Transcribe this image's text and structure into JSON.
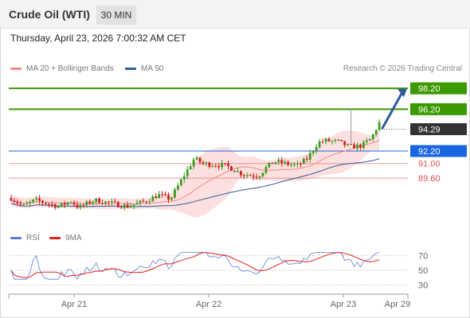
{
  "header": {
    "instrument": "Crude Oil (WTI)",
    "timeframe": "30 MIN",
    "datetime": "Thursday, April 23, 2026 7:00:32 AM CET"
  },
  "legend": {
    "ma20": {
      "label": "MA 20 + Bollinger Bands",
      "color": "#f28b82"
    },
    "ma50": {
      "label": "MA 50",
      "color": "#2f5b9a"
    },
    "credit": "Research © 2026 Trading Central"
  },
  "rsi_legend": {
    "rsi": {
      "label": "RSI",
      "color": "#5b7fd6"
    },
    "ma9": {
      "label": "9MA",
      "color": "#e02020"
    }
  },
  "chart_data": [
    {
      "type": "candlestick",
      "title": "Crude Oil (WTI)",
      "x_ticks": [
        "Apr 21",
        "Apr 22",
        "Apr 23",
        "Apr 29"
      ],
      "ylim": [
        85.5,
        99.2
      ],
      "current_price": {
        "label": "94.29",
        "value": 94.29,
        "color": "#333333"
      },
      "levels": [
        {
          "label": "98.20",
          "value": 98.2,
          "style": "tag",
          "color": "#3a9a00"
        },
        {
          "label": "96.20",
          "value": 96.2,
          "style": "tag",
          "color": "#3a9a00"
        },
        {
          "label": "92.20",
          "value": 92.2,
          "style": "tag",
          "color": "#1a66e0"
        },
        {
          "label": "91.00",
          "value": 91.0,
          "style": "text",
          "color": "#e05050"
        },
        {
          "label": "89.60",
          "value": 89.6,
          "style": "text",
          "color": "#e05050"
        }
      ],
      "projection": {
        "from": 94.4,
        "to": 98.2
      }
    },
    {
      "type": "line",
      "title": "RSI",
      "series": [
        "RSI",
        "9MA"
      ],
      "y_ticks": [
        {
          "label": "70",
          "value": 70
        },
        {
          "label": "50",
          "value": 50
        },
        {
          "label": "30",
          "value": 30
        }
      ],
      "ylim": [
        20,
        80
      ]
    }
  ]
}
